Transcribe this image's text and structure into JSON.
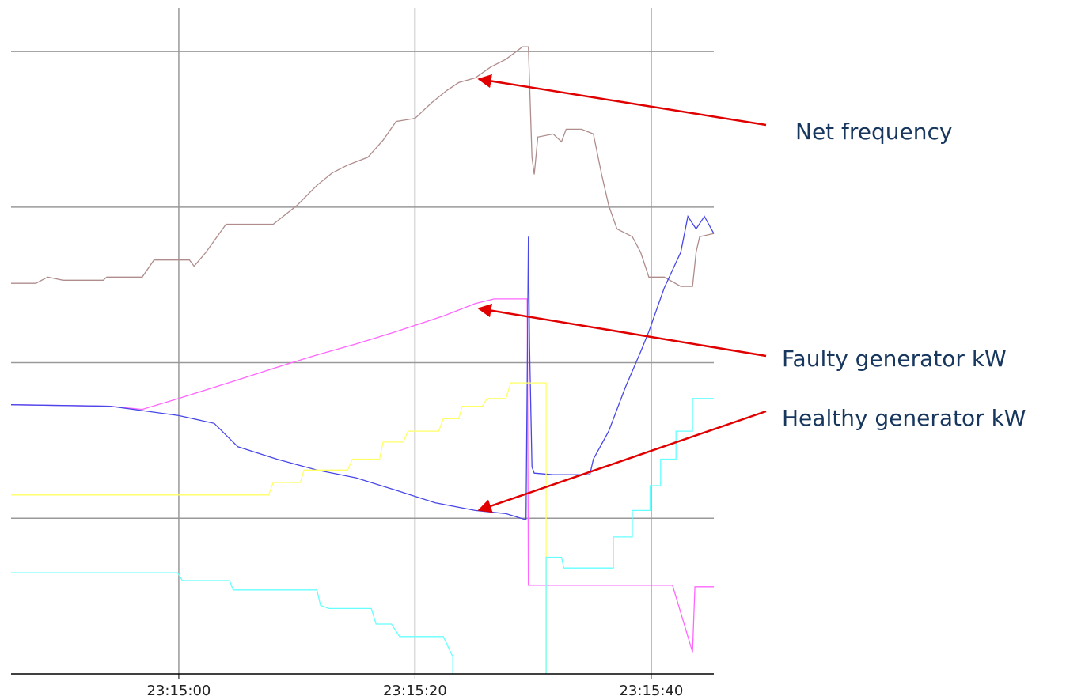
{
  "chart_data": {
    "type": "line",
    "xlim": [
      -14.2,
      45.3
    ],
    "xticks": [
      {
        "value": 0,
        "label": "23:15:00"
      },
      {
        "value": 20,
        "label": "23:15:20"
      },
      {
        "value": 40,
        "label": "23:15:40"
      }
    ],
    "ylim": [
      0,
      4.28
    ],
    "yticks": [
      1,
      2,
      3,
      4
    ],
    "grid": true,
    "series": [
      {
        "name": "Net frequency",
        "color": "#b08c8c",
        "x": [
          -14.2,
          -12.1,
          -11.1,
          -9.8,
          -6.4,
          -6.1,
          -3.1,
          -2.1,
          0.9,
          1.3,
          2.3,
          4.0,
          8.0,
          10.0,
          11.7,
          13.0,
          14.3,
          16.0,
          17.3,
          18.4,
          20.0,
          21.4,
          22.7,
          23.7,
          25.1,
          26.4,
          27.7,
          29.1,
          29.6,
          29.9,
          30.1,
          30.4,
          31.7,
          32.4,
          32.8,
          34.1,
          35.1,
          35.8,
          36.4,
          37.1,
          38.4,
          39.1,
          39.8,
          41.1,
          42.5,
          43.5,
          43.8,
          44.1,
          45.3
        ],
        "values": [
          2.51,
          2.51,
          2.55,
          2.53,
          2.53,
          2.55,
          2.55,
          2.66,
          2.66,
          2.62,
          2.71,
          2.89,
          2.89,
          3.01,
          3.14,
          3.22,
          3.27,
          3.32,
          3.43,
          3.55,
          3.57,
          3.67,
          3.75,
          3.8,
          3.83,
          3.9,
          3.95,
          4.03,
          4.03,
          3.32,
          3.21,
          3.45,
          3.47,
          3.42,
          3.5,
          3.5,
          3.47,
          3.21,
          3.01,
          2.86,
          2.81,
          2.71,
          2.55,
          2.55,
          2.49,
          2.49,
          2.71,
          2.81,
          2.83
        ]
      },
      {
        "name": "Faulty generator kW",
        "color": "#ff66ff",
        "x": [
          -14.2,
          -5.8,
          -3.1,
          0,
          5.0,
          8.3,
          11.7,
          15.0,
          18.4,
          20.4,
          22.4,
          25.1,
          26.7,
          29.5,
          29.6,
          41.8,
          43.5,
          43.7,
          45.3
        ],
        "values": [
          1.73,
          1.72,
          1.7,
          1.77,
          1.89,
          1.97,
          2.05,
          2.12,
          2.2,
          2.25,
          2.3,
          2.38,
          2.41,
          2.41,
          0.57,
          0.57,
          0.14,
          0.56,
          0.56
        ]
      },
      {
        "name": "Healthy generator kW",
        "color": "#4848e8",
        "x": [
          -14.2,
          -5.8,
          0.0,
          3.0,
          5.0,
          8.3,
          11.7,
          15.0,
          18.4,
          21.7,
          25.1,
          27.7,
          29.4,
          29.6,
          29.7,
          29.9,
          30.1,
          31.7,
          34.8,
          35.1,
          36.4,
          37.8,
          39.1,
          39.8,
          41.1,
          42.5,
          43.1,
          43.8,
          44.5,
          45.3
        ],
        "values": [
          1.73,
          1.72,
          1.66,
          1.61,
          1.46,
          1.38,
          1.31,
          1.26,
          1.18,
          1.1,
          1.05,
          1.03,
          0.99,
          2.81,
          2.1,
          1.33,
          1.29,
          1.28,
          1.28,
          1.38,
          1.56,
          1.84,
          2.07,
          2.2,
          2.48,
          2.71,
          2.94,
          2.86,
          2.94,
          2.83
        ]
      },
      {
        "color": "#ffff66",
        "x": [
          -14.2,
          7.6,
          8.0,
          10.3,
          10.6,
          14.3,
          14.7,
          17.0,
          17.3,
          19.0,
          19.4,
          22.0,
          22.4,
          23.7,
          24.0,
          25.7,
          26.1,
          27.7,
          28.1,
          31.1,
          31.1
        ],
        "values": [
          1.15,
          1.15,
          1.23,
          1.23,
          1.31,
          1.31,
          1.38,
          1.38,
          1.49,
          1.49,
          1.56,
          1.56,
          1.64,
          1.64,
          1.72,
          1.72,
          1.77,
          1.77,
          1.87,
          1.87,
          0
        ]
      },
      {
        "color": "#66ffff",
        "x": [
          -14.2,
          -0.1,
          0.3,
          4.3,
          4.6,
          11.7,
          12.0,
          12.7,
          16.3,
          16.7,
          18.0,
          18.7,
          22.4,
          23.2,
          23.2,
          27.0,
          31.1,
          31.1,
          32.4,
          32.6,
          36.8,
          36.8,
          38.4,
          38.4,
          39.9,
          39.9,
          40.8,
          40.8,
          42.1,
          42.1,
          43.5,
          43.5,
          45.3
        ],
        "values": [
          0.65,
          0.65,
          0.6,
          0.6,
          0.54,
          0.54,
          0.44,
          0.42,
          0.42,
          0.32,
          0.32,
          0.24,
          0.24,
          0.11,
          0,
          null,
          0,
          0.75,
          0.75,
          0.68,
          0.68,
          0.88,
          0.88,
          1.05,
          1.05,
          1.21,
          1.21,
          1.38,
          1.38,
          1.56,
          1.56,
          1.77,
          1.77
        ]
      }
    ]
  }
}
